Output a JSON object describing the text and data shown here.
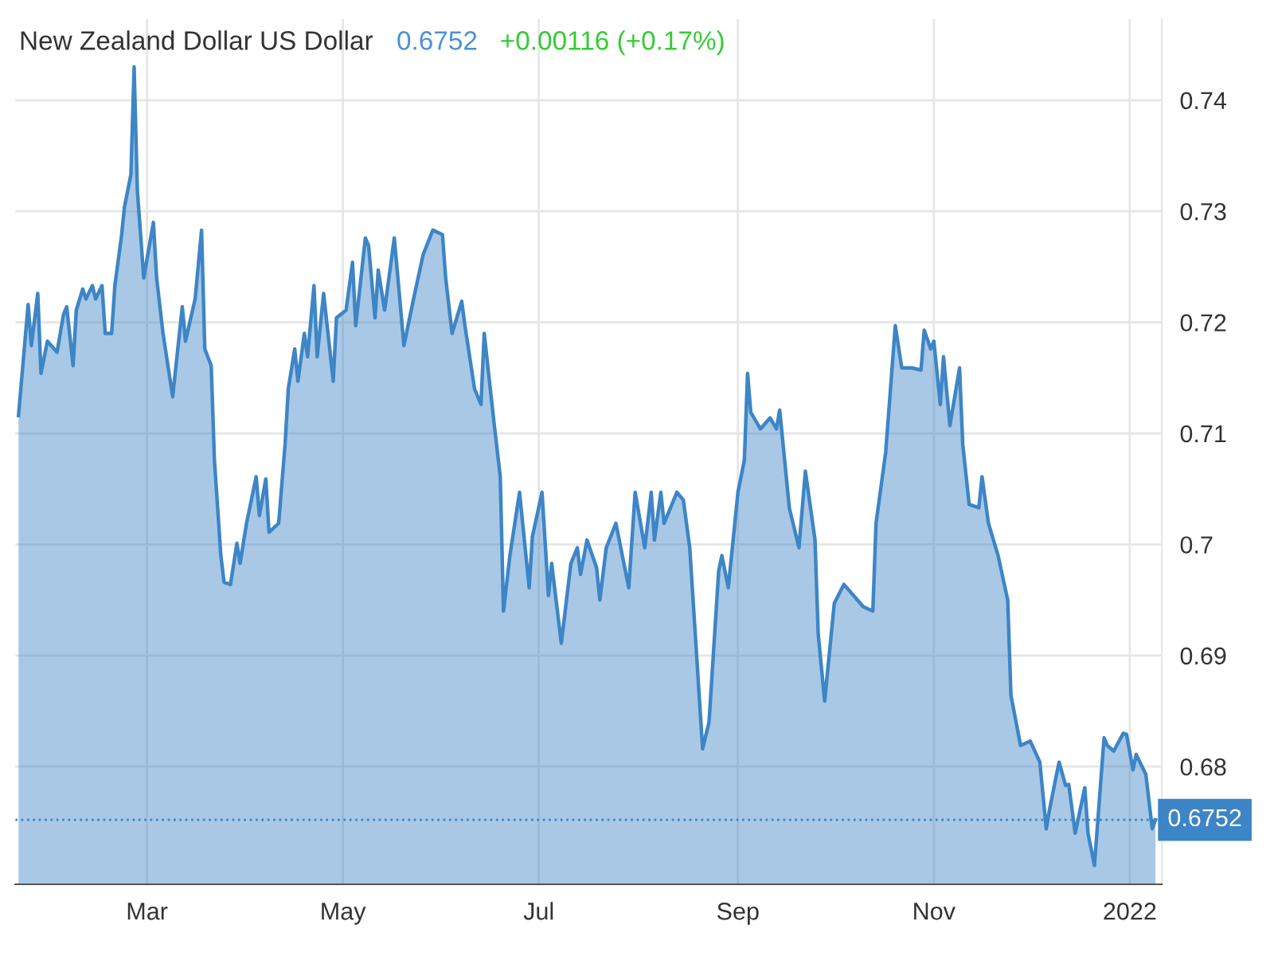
{
  "chart_data": {
    "type": "area",
    "title": "New Zealand Dollar US Dollar",
    "annotations": [
      "0.6752",
      "+0.00116 (+0.17%)"
    ],
    "x": [
      "2021-01-20",
      "2021-01-23",
      "2021-01-24",
      "2021-01-26",
      "2021-01-27",
      "2021-01-29",
      "2021-02-01",
      "2021-02-03",
      "2021-02-04",
      "2021-02-06",
      "2021-02-07",
      "2021-02-09",
      "2021-02-10",
      "2021-02-12",
      "2021-02-13",
      "2021-02-15",
      "2021-02-16",
      "2021-02-18",
      "2021-02-19",
      "2021-02-21",
      "2021-02-22",
      "2021-02-24",
      "2021-02-25",
      "2021-02-26",
      "2021-02-28",
      "2021-03-03",
      "2021-03-04",
      "2021-03-06",
      "2021-03-09",
      "2021-03-12",
      "2021-03-13",
      "2021-03-16",
      "2021-03-18",
      "2021-03-19",
      "2021-03-21",
      "2021-03-22",
      "2021-03-24",
      "2021-03-25",
      "2021-03-27",
      "2021-03-29",
      "2021-03-30",
      "2021-04-01",
      "2021-04-04",
      "2021-04-05",
      "2021-04-07",
      "2021-04-08",
      "2021-04-11",
      "2021-04-13",
      "2021-04-14",
      "2021-04-16",
      "2021-04-17",
      "2021-04-19",
      "2021-04-20",
      "2021-04-22",
      "2021-04-23",
      "2021-04-25",
      "2021-04-28",
      "2021-04-29",
      "2021-05-02",
      "2021-05-04",
      "2021-05-05",
      "2021-05-08",
      "2021-05-09",
      "2021-05-11",
      "2021-05-12",
      "2021-05-14",
      "2021-05-17",
      "2021-05-18",
      "2021-05-20",
      "2021-05-23",
      "2021-05-26",
      "2021-05-29",
      "2021-06-01",
      "2021-06-02",
      "2021-06-04",
      "2021-06-07",
      "2021-06-08",
      "2021-06-11",
      "2021-06-13",
      "2021-06-14",
      "2021-06-17",
      "2021-06-19",
      "2021-06-20",
      "2021-06-22",
      "2021-06-25",
      "2021-06-28",
      "2021-06-29",
      "2021-07-02",
      "2021-07-04",
      "2021-07-05",
      "2021-07-08",
      "2021-07-11",
      "2021-07-13",
      "2021-07-14",
      "2021-07-16",
      "2021-07-19",
      "2021-07-20",
      "2021-07-22",
      "2021-07-25",
      "2021-07-29",
      "2021-07-31",
      "2021-08-03",
      "2021-08-05",
      "2021-08-06",
      "2021-08-08",
      "2021-08-09",
      "2021-08-13",
      "2021-08-15",
      "2021-08-17",
      "2021-08-20",
      "2021-08-21",
      "2021-08-23",
      "2021-08-26",
      "2021-08-27",
      "2021-08-29",
      "2021-09-01",
      "2021-09-03",
      "2021-09-04",
      "2021-09-05",
      "2021-09-08",
      "2021-09-11",
      "2021-09-13",
      "2021-09-14",
      "2021-09-17",
      "2021-09-20",
      "2021-09-22",
      "2021-09-25",
      "2021-09-26",
      "2021-09-28",
      "2021-10-01",
      "2021-10-04",
      "2021-10-07",
      "2021-10-10",
      "2021-10-13",
      "2021-10-14",
      "2021-10-17",
      "2021-10-20",
      "2021-10-22",
      "2021-10-25",
      "2021-10-28",
      "2021-10-29",
      "2021-10-31",
      "2021-11-01",
      "2021-11-03",
      "2021-11-04",
      "2021-11-06",
      "2021-11-09",
      "2021-11-10",
      "2021-11-12",
      "2021-11-15",
      "2021-11-16",
      "2021-11-18",
      "2021-11-21",
      "2021-11-24",
      "2021-11-25",
      "2021-11-28",
      "2021-12-01",
      "2021-12-04",
      "2021-12-06",
      "2021-12-07",
      "2021-12-09",
      "2021-12-10",
      "2021-12-12",
      "2021-12-13",
      "2021-12-15",
      "2021-12-18",
      "2021-12-19",
      "2021-12-21",
      "2021-12-24",
      "2021-12-25",
      "2021-12-27",
      "2021-12-30",
      "2021-12-31",
      "2022-01-02",
      "2022-01-03",
      "2022-01-06",
      "2022-01-08",
      "2022-01-09"
    ],
    "series": [
      {
        "color": "#3d85c6",
        "values": [
          0.7116,
          0.7216,
          0.7179,
          0.7226,
          0.7154,
          0.7183,
          0.7173,
          0.7207,
          0.7214,
          0.7161,
          0.7211,
          0.723,
          0.7221,
          0.7233,
          0.7221,
          0.7233,
          0.719,
          0.719,
          0.7233,
          0.7276,
          0.7304,
          0.7333,
          0.743,
          0.7319,
          0.724,
          0.729,
          0.724,
          0.719,
          0.7133,
          0.7214,
          0.7183,
          0.7221,
          0.7283,
          0.7176,
          0.7161,
          0.7076,
          0.699,
          0.6966,
          0.6964,
          0.7001,
          0.6983,
          0.7019,
          0.7061,
          0.7026,
          0.7059,
          0.7011,
          0.7019,
          0.709,
          0.714,
          0.7176,
          0.7147,
          0.719,
          0.7169,
          0.7233,
          0.7169,
          0.7226,
          0.7147,
          0.7204,
          0.7211,
          0.7254,
          0.7197,
          0.7276,
          0.7269,
          0.7204,
          0.7247,
          0.7211,
          0.7276,
          0.7244,
          0.7179,
          0.7221,
          0.7261,
          0.7283,
          0.7279,
          0.724,
          0.719,
          0.7219,
          0.7197,
          0.714,
          0.7126,
          0.719,
          0.7111,
          0.7061,
          0.694,
          0.699,
          0.7047,
          0.6961,
          0.7007,
          0.7047,
          0.6954,
          0.6983,
          0.6911,
          0.6983,
          0.6997,
          0.6973,
          0.7004,
          0.6979,
          0.695,
          0.6997,
          0.7019,
          0.6961,
          0.7047,
          0.6997,
          0.7047,
          0.7004,
          0.7047,
          0.7019,
          0.7047,
          0.704,
          0.6997,
          0.6861,
          0.6816,
          0.684,
          0.6976,
          0.699,
          0.6961,
          0.7047,
          0.7076,
          0.7154,
          0.7119,
          0.7104,
          0.7114,
          0.7104,
          0.7121,
          0.7033,
          0.6997,
          0.7066,
          0.7004,
          0.6919,
          0.6859,
          0.6947,
          0.6964,
          0.6954,
          0.6944,
          0.694,
          0.7019,
          0.7083,
          0.7197,
          0.7159,
          0.7159,
          0.7157,
          0.7193,
          0.7176,
          0.7183,
          0.7126,
          0.7169,
          0.7107,
          0.7159,
          0.709,
          0.7036,
          0.7033,
          0.7061,
          0.7019,
          0.699,
          0.695,
          0.6864,
          0.6819,
          0.6823,
          0.6804,
          0.6744,
          0.6761,
          0.679,
          0.6804,
          0.6783,
          0.6784,
          0.674,
          0.6781,
          0.674,
          0.6711,
          0.6826,
          0.6819,
          0.6814,
          0.683,
          0.6829,
          0.6797,
          0.6811,
          0.6793,
          0.6744,
          0.6752
        ]
      }
    ],
    "xlim": [
      "2021-01-19",
      "2022-01-11"
    ],
    "xticks": [
      {
        "value": "2021-03-01",
        "label": "Mar"
      },
      {
        "value": "2021-05-01",
        "label": "May"
      },
      {
        "value": "2021-07-01",
        "label": "Jul"
      },
      {
        "value": "2021-09-01",
        "label": "Sep"
      },
      {
        "value": "2021-11-01",
        "label": "Nov"
      },
      {
        "value": "2022-01-01",
        "label": "2022"
      }
    ],
    "ylim": [
      0.6694,
      0.7473
    ],
    "yticks": [
      0.68,
      0.69,
      0.7,
      0.71,
      0.72,
      0.73,
      0.74
    ],
    "grid": true,
    "ref_lines": [
      {
        "axis": "y",
        "value": 0.6752,
        "label": "0.6752",
        "color": "#3d85c6",
        "line_style": "dotted"
      }
    ]
  }
}
